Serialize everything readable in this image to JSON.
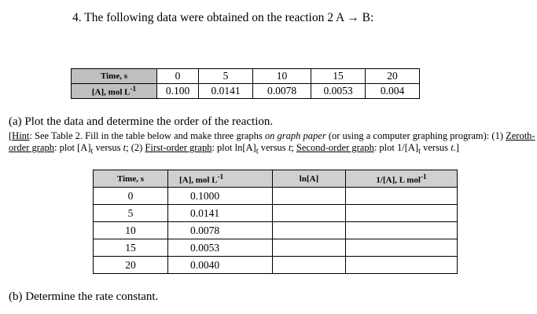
{
  "question": {
    "title": "4. The following data were obtained on the reaction 2 A → B:"
  },
  "table1": {
    "row1_label": "Time, s",
    "row2_label": "[A], mol L",
    "row2_sup": "-1",
    "times": [
      "0",
      "5",
      "10",
      "15",
      "20"
    ],
    "concentrations": [
      "0.100",
      "0.0141",
      "0.0078",
      "0.0053",
      "0.004"
    ]
  },
  "part_a": {
    "text": "(a) Plot the data and determine the order of the reaction.",
    "hint_bracket": "[",
    "hint_label": "Hint",
    "hint_1": ": See Table 2. Fill in the table below and make three graphs ",
    "hint_italic": "on graph paper",
    "hint_2": " (or using a computer graphing program): (1) ",
    "zeroth": "Zeroth-order graph",
    "hint_3": ": plot [A]",
    "sub_t": "t",
    "hint_4": " versus ",
    "t": "t",
    "hint_5": "; (2) ",
    "first": "First-order graph",
    "hint_6": ":  plot ln[A]",
    "hint_7": "; ",
    "second": "Second-order graph",
    "hint_8": ": plot 1/[A]",
    "hint_end": ".]"
  },
  "table2": {
    "headers": {
      "time": "Time, s",
      "conc": "[A], mol L",
      "conc_sup": "-1",
      "ln": "ln[A]",
      "inv": "1/[A], L mol",
      "inv_sup": "-1"
    },
    "rows": [
      {
        "time": "0",
        "conc": "0.1000",
        "ln": "",
        "inv": ""
      },
      {
        "time": "5",
        "conc": "0.0141",
        "ln": "",
        "inv": ""
      },
      {
        "time": "10",
        "conc": "0.0078",
        "ln": "",
        "inv": ""
      },
      {
        "time": "15",
        "conc": "0.0053",
        "ln": "",
        "inv": ""
      },
      {
        "time": "20",
        "conc": "0.0040",
        "ln": "",
        "inv": ""
      }
    ]
  },
  "part_b": {
    "text": "(b) Determine the rate constant."
  }
}
